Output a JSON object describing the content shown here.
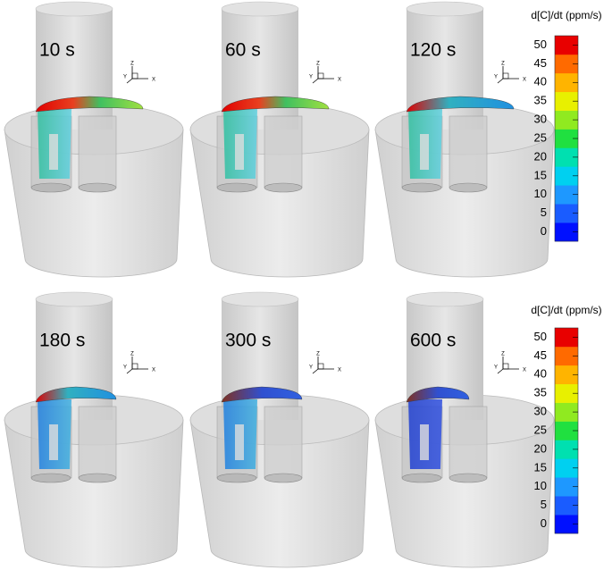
{
  "panels": [
    {
      "label": "10 s"
    },
    {
      "label": "60 s"
    },
    {
      "label": "120 s"
    },
    {
      "label": "180 s"
    },
    {
      "label": "300 s"
    },
    {
      "label": "600 s"
    }
  ],
  "triad": {
    "z": "Z",
    "y": "Y",
    "x": "X"
  },
  "colorbars": [
    {
      "title": "d[C]/dt (ppm/s)",
      "ticks": [
        0,
        5,
        10,
        15,
        20,
        25,
        30,
        35,
        40,
        45,
        50
      ]
    },
    {
      "title": "d[C]/dt (ppm/s)",
      "ticks": [
        0,
        5,
        10,
        15,
        20,
        25,
        30,
        35,
        40,
        45,
        50
      ]
    }
  ]
}
